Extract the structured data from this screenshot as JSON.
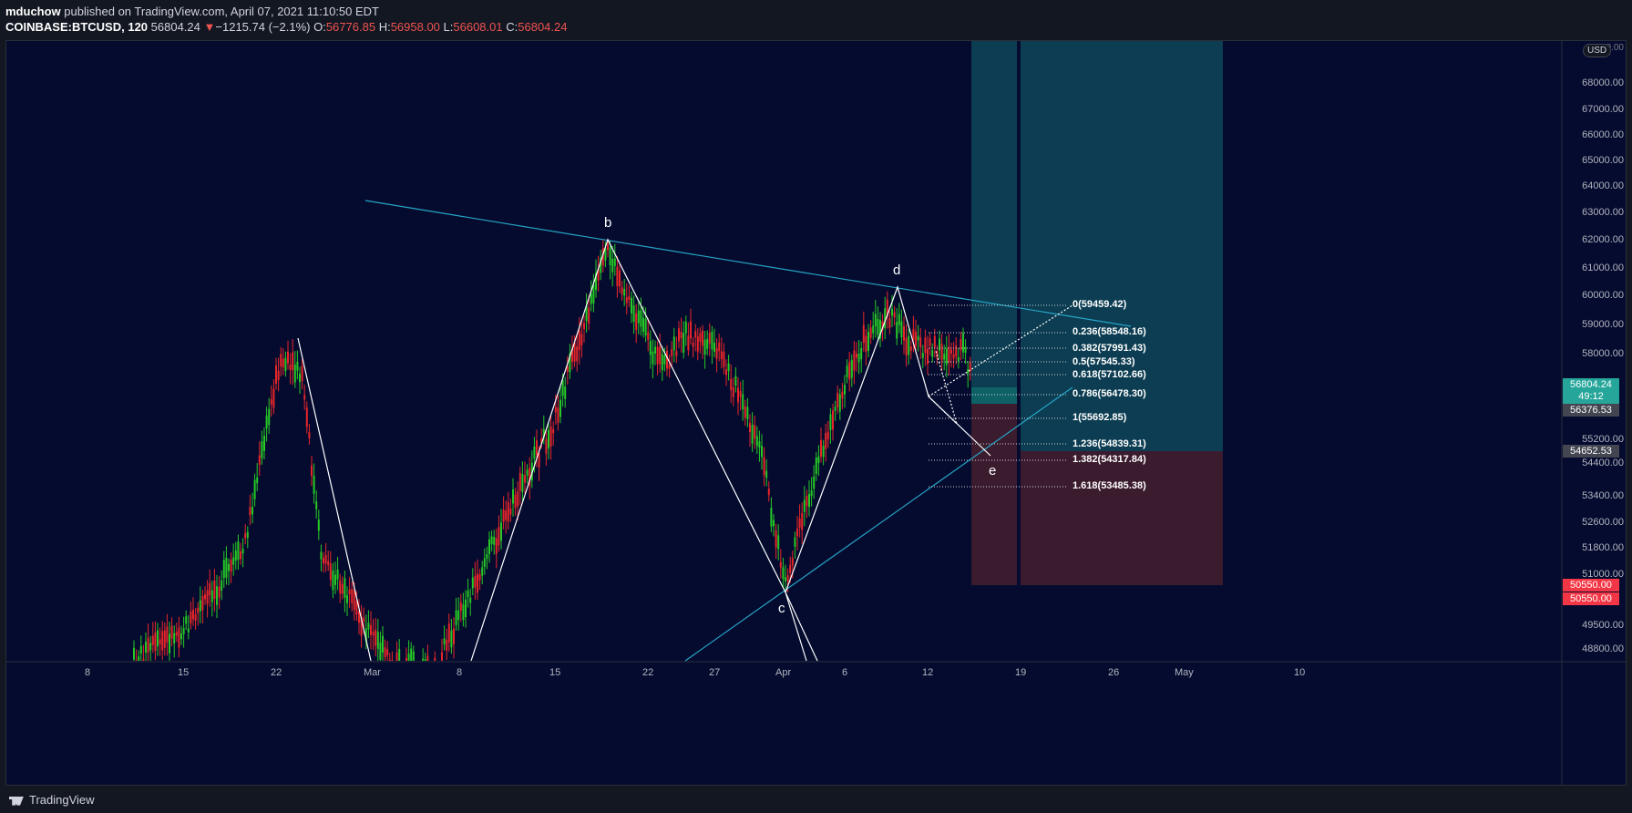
{
  "header": {
    "author": "mduchow",
    "published_text": "published on TradingView.com, April 07, 2021 11:10:50 EDT",
    "symbol": "COINBASE:BTCUSD, 120",
    "last": "56804.24",
    "change_arrow": "▼",
    "change": "−1215.74 (−2.1%)",
    "o_label": "O:",
    "o_value": "56776.85",
    "h_label": "H:",
    "h_value": "56958.00",
    "l_label": "L:",
    "l_value": "56608.01",
    "c_label": "C:",
    "c_value": "56804.24"
  },
  "price_axis": {
    "currency": "USD",
    "ticks": [
      "68000.00",
      "67000.00",
      "66000.00",
      "65000.00",
      "64000.00",
      "63000.00",
      "62000.00",
      "61000.00",
      "60000.00",
      "59000.00",
      "58000.00",
      "55200.00",
      "54400.00",
      "53400.00",
      "52600.00",
      "51800.00",
      "51000.00",
      "49500.00",
      "48800.00"
    ],
    "partial_top_label": "69000.00",
    "labels": {
      "current_price": "56804.24",
      "countdown": "49:12",
      "entry": "56376.53",
      "stop": "54652.53",
      "target1": "50550.00",
      "target2": "50550.00"
    }
  },
  "time_axis": {
    "ticks": [
      "8",
      "15",
      "22",
      "Mar",
      "8",
      "15",
      "22",
      "27",
      "Apr",
      "6",
      "12",
      "19",
      "26",
      "May",
      "10"
    ]
  },
  "wave_labels": [
    "b",
    "c",
    "d",
    "e"
  ],
  "fib_levels": [
    "0(59459.42)",
    "0.236(58548.16)",
    "0.382(57991.43)",
    "0.5(57545.33)",
    "0.618(57102.66)",
    "0.786(56478.30)",
    "1(55692.85)",
    "1.236(54839.31)",
    "1.382(54317.84)",
    "1.618(53485.38)"
  ],
  "colors": {
    "background": "#050b2f",
    "up_candle": "#26c926",
    "down_candle": "#e8262a",
    "trendline": "#26a5c6",
    "profit_zone": "#0c3d52",
    "loss_zone": "#3b1b2e",
    "price_badge": "#26a69a",
    "stop_badge": "#f23645"
  },
  "footer": {
    "brand": "TradingView"
  }
}
